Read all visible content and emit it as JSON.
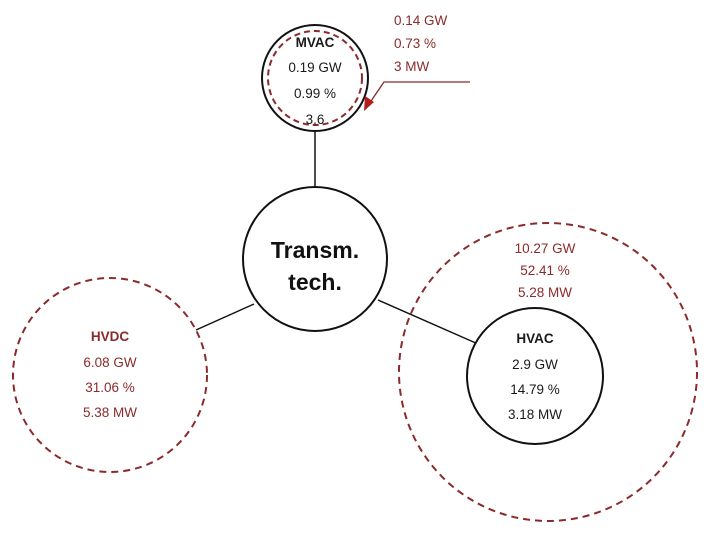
{
  "center_node": {
    "line1": "Transm.",
    "line2": "tech."
  },
  "mvac": {
    "title": "MVAC",
    "inner": [
      "0.19 GW",
      "0.99 %",
      "3.6"
    ],
    "outer": [
      "0.14 GW",
      "0.73 %",
      "3 MW"
    ]
  },
  "hvac": {
    "title": "HVAC",
    "inner": [
      "2.9 GW",
      "14.79 %",
      "3.18 MW"
    ],
    "outer": [
      "10.27 GW",
      "52.41 %",
      "5.28 MW"
    ]
  },
  "hvdc": {
    "title": "HVDC",
    "outer": [
      "6.08 GW",
      "31.06 %",
      "5.38 MW"
    ]
  },
  "colors": {
    "solid": "#111111",
    "dashed": "#8b2a2a"
  }
}
